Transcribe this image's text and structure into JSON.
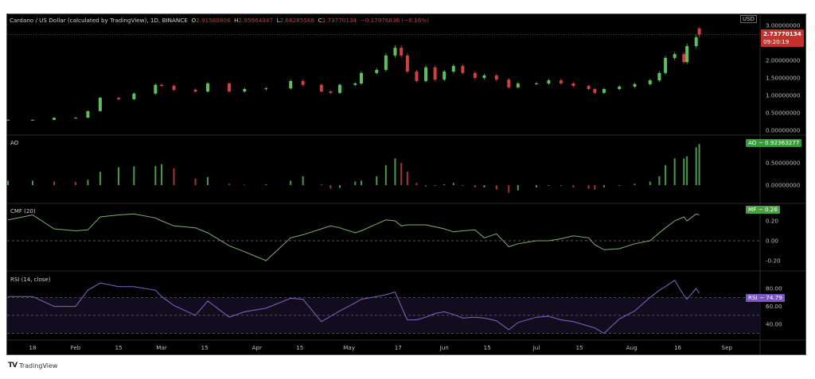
{
  "header": {
    "symbol": "Cardano / US Dollar (calculated by TradingView), 1D, BINANCE",
    "open_label": "O",
    "open": "2.91580806",
    "high_label": "H",
    "high": "2.95964347",
    "low_label": "L",
    "low": "2.66285568",
    "close_label": "C",
    "close": "2.73770134",
    "change": "−0.17976836 (−6.16%)"
  },
  "currency": "USD",
  "last_price_badge": {
    "price": "2.73770134",
    "countdown": "09:20:19",
    "color": "#c8302c"
  },
  "panes": {
    "ao": {
      "title": "AO",
      "badge": "AO − 0.92363277",
      "badge_color": "#3a9a3a"
    },
    "cmf": {
      "title": "CMF (20)",
      "badge": "MF − 0.26",
      "badge_color": "#4f9a48"
    },
    "rsi": {
      "title": "RSI (14, close)",
      "badge": "RSI − 74.79",
      "badge_color": "#7a55c8"
    }
  },
  "colors": {
    "up": "#5fbf5f",
    "down": "#d04040",
    "cmf_line": "#7fb070",
    "rsi_line": "#7d68c8",
    "rsi_band": "#120d1e"
  },
  "watermark": "TradingView",
  "chart_data": [
    {
      "type": "candlestick",
      "title": "Cardano / US Dollar (calculated by TradingView), 1D, BINANCE",
      "dates": [
        "Jan 10",
        "Jan 18",
        "Jan 25",
        "Feb 1",
        "Feb 5",
        "Feb 9",
        "Feb 15",
        "Feb 20",
        "Feb 27",
        "Mar 1",
        "Mar 5",
        "Mar 12",
        "Mar 16",
        "Mar 23",
        "Mar 28",
        "Apr 4",
        "Apr 12",
        "Apr 16",
        "Apr 22",
        "Apr 25",
        "Apr 28",
        "May 3",
        "May 5",
        "May 10",
        "May 13",
        "May 16",
        "May 18",
        "May 20",
        "May 23",
        "May 26",
        "May 29",
        "Jun 1",
        "Jun 4",
        "Jun 7",
        "Jun 11",
        "Jun 14",
        "Jun 18",
        "Jun 22",
        "Jun 25",
        "Jul 1",
        "Jul 5",
        "Jul 9",
        "Jul 13",
        "Jul 18",
        "Jul 20",
        "Jul 23",
        "Jul 28",
        "Aug 2",
        "Aug 7",
        "Aug 10",
        "Aug 12",
        "Aug 15",
        "Aug 18",
        "Aug 19",
        "Aug 22",
        "Aug 23"
      ],
      "close": [
        0.3,
        0.3,
        0.36,
        0.36,
        0.55,
        0.93,
        0.89,
        1.05,
        1.3,
        1.27,
        1.16,
        1.11,
        1.34,
        1.11,
        1.18,
        1.2,
        1.41,
        1.3,
        1.11,
        1.07,
        1.3,
        1.34,
        1.64,
        1.73,
        2.14,
        2.36,
        2.14,
        1.68,
        1.41,
        1.8,
        1.45,
        1.68,
        1.84,
        1.64,
        1.5,
        1.57,
        1.45,
        1.23,
        1.34,
        1.34,
        1.43,
        1.34,
        1.27,
        1.18,
        1.07,
        1.18,
        1.25,
        1.32,
        1.43,
        1.64,
        2.07,
        2.18,
        1.95,
        2.41,
        2.66,
        2.7377
      ],
      "last_candle": {
        "open": 2.91580806,
        "high": 2.95964347,
        "low": 2.66285568,
        "close": 2.73770134
      },
      "y_ticks": [
        "3.00000000",
        "2.00000000",
        "1.50000000",
        "1.00000000",
        "0.50000000",
        "0.00000000"
      ],
      "y_tick_values": [
        3.0,
        2.0,
        1.5,
        1.0,
        0.5,
        0.0
      ]
    },
    {
      "type": "bar",
      "title": "AO",
      "values": [
        0.1,
        0.1,
        0.08,
        0.07,
        0.12,
        0.3,
        0.4,
        0.42,
        0.43,
        0.47,
        0.38,
        0.15,
        0.18,
        0.03,
        0.01,
        0.02,
        0.1,
        0.2,
        0.02,
        -0.08,
        -0.06,
        0.08,
        0.1,
        0.2,
        0.45,
        0.6,
        0.5,
        0.3,
        0.05,
        -0.03,
        0.0,
        0.02,
        0.05,
        -0.02,
        -0.05,
        -0.05,
        -0.1,
        -0.17,
        -0.12,
        -0.05,
        0.0,
        -0.02,
        -0.05,
        -0.08,
        -0.1,
        -0.05,
        0.0,
        0.03,
        0.08,
        0.2,
        0.45,
        0.6,
        0.6,
        0.65,
        0.85,
        0.92363277
      ],
      "y_ticks": [
        "0.50000000",
        "0.00000000"
      ],
      "y_tick_values": [
        0.5,
        0.0
      ]
    },
    {
      "type": "line",
      "title": "CMF (20)",
      "values": [
        0.21,
        0.26,
        0.12,
        0.1,
        0.11,
        0.24,
        0.26,
        0.27,
        0.23,
        0.2,
        0.15,
        0.13,
        0.08,
        -0.05,
        -0.11,
        -0.2,
        0.03,
        0.06,
        0.12,
        0.15,
        0.13,
        0.08,
        0.1,
        0.17,
        0.21,
        0.2,
        0.15,
        0.16,
        0.16,
        0.16,
        0.14,
        0.12,
        0.09,
        0.1,
        0.11,
        0.03,
        0.07,
        -0.06,
        -0.03,
        0.0,
        0.0,
        0.02,
        0.05,
        0.03,
        -0.04,
        -0.09,
        -0.08,
        -0.03,
        0.0,
        0.08,
        0.13,
        0.2,
        0.24,
        0.2,
        0.27,
        0.26
      ],
      "y_ticks": [
        "0.20",
        "0.00",
        "-0.20"
      ],
      "y_tick_values": [
        0.2,
        0.0,
        -0.2
      ]
    },
    {
      "type": "line",
      "title": "RSI (14, close)",
      "values": [
        71,
        71,
        60,
        60,
        78,
        86,
        82,
        82,
        78,
        71,
        61,
        50,
        66,
        48,
        54,
        58,
        69,
        68,
        43,
        49,
        55,
        64,
        68,
        71,
        73,
        76,
        60,
        45,
        45,
        48,
        52,
        54,
        51,
        47,
        48,
        47,
        44,
        34,
        42,
        48,
        49,
        45,
        43,
        38,
        36,
        30,
        46,
        55,
        70,
        78,
        82,
        89,
        72,
        68,
        80,
        74.79
      ],
      "bands": [
        70,
        50,
        30
      ],
      "y_ticks": [
        "80.00",
        "60.00",
        "40.00"
      ],
      "y_tick_values": [
        80,
        60,
        40
      ]
    }
  ],
  "x_axis": {
    "ticks": [
      {
        "label": "18",
        "date": "Jan 18"
      },
      {
        "label": "Feb",
        "date": "Feb 1"
      },
      {
        "label": "15",
        "date": "Feb 15"
      },
      {
        "label": "Mar",
        "date": "Mar 1"
      },
      {
        "label": "15",
        "date": "Mar 15"
      },
      {
        "label": "Apr",
        "date": "Apr 1"
      },
      {
        "label": "15",
        "date": "Apr 15"
      },
      {
        "label": "May",
        "date": "May 1"
      },
      {
        "label": "17",
        "date": "May 17"
      },
      {
        "label": "Jun",
        "date": "Jun 1"
      },
      {
        "label": "15",
        "date": "Jun 15"
      },
      {
        "label": "Jul",
        "date": "Jul 1"
      },
      {
        "label": "15",
        "date": "Jul 15"
      },
      {
        "label": "Aug",
        "date": "Aug 1"
      },
      {
        "label": "16",
        "date": "Aug 16"
      },
      {
        "label": "Sep",
        "date": "Sep 1"
      }
    ]
  }
}
